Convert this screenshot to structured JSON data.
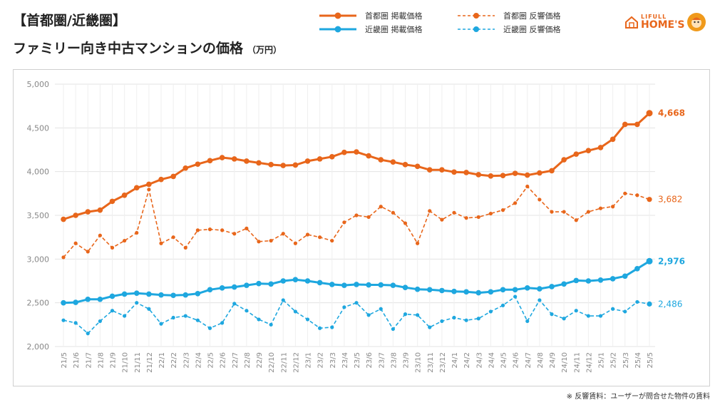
{
  "header": {
    "title_line1": "【首都圏/近畿圏】",
    "title_line2": "ファミリー向き中古マンションの価格",
    "unit": "（万円）"
  },
  "legend": [
    {
      "name": "首都圏 掲載価格",
      "color": "#e8661b",
      "style": "solid"
    },
    {
      "name": "近畿圏 掲載価格",
      "color": "#1ea7df",
      "style": "solid"
    },
    {
      "name": "首都圏 反響価格",
      "color": "#e8661b",
      "style": "dashed"
    },
    {
      "name": "近畿圏 反響価格",
      "color": "#1ea7df",
      "style": "dashed"
    }
  ],
  "logo": {
    "line1": "LIFULL",
    "line2": "HOME'S"
  },
  "footnote": "※ 反響賃料：ユーザーが問合せた物件の賃料",
  "colors": {
    "orange": "#e8661b",
    "blue": "#1ea7df",
    "grid": "#e3e3e3",
    "axis_text": "#888888"
  },
  "chart_data": {
    "type": "line",
    "x": [
      "21/5",
      "21/6",
      "21/7",
      "21/8",
      "21/9",
      "21/10",
      "21/11",
      "21/12",
      "22/1",
      "22/2",
      "22/3",
      "22/4",
      "22/5",
      "22/6",
      "22/7",
      "22/8",
      "22/9",
      "22/10",
      "22/11",
      "22/12",
      "23/1",
      "23/2",
      "23/3",
      "23/4",
      "23/5",
      "23/6",
      "23/7",
      "23/8",
      "23/9",
      "23/10",
      "23/11",
      "23/12",
      "24/1",
      "24/2",
      "24/3",
      "24/4",
      "24/5",
      "24/6",
      "24/7",
      "24/8",
      "24/9",
      "24/10",
      "24/11",
      "24/12",
      "25/1",
      "25/2",
      "25/3",
      "25/4",
      "25/5"
    ],
    "ylim": [
      2000,
      5000
    ],
    "yticks": [
      "2,000",
      "2,500",
      "3,000",
      "3,500",
      "4,000",
      "4,500",
      "5,000"
    ],
    "grid": true,
    "series": [
      {
        "name": "首都圏 掲載価格",
        "color": "#e8661b",
        "style": "solid",
        "end_label": "4,668",
        "values": [
          3455,
          3500,
          3540,
          3560,
          3660,
          3730,
          3815,
          3855,
          3910,
          3945,
          4040,
          4085,
          4125,
          4160,
          4145,
          4120,
          4100,
          4080,
          4070,
          4075,
          4120,
          4145,
          4170,
          4220,
          4225,
          4180,
          4135,
          4110,
          4080,
          4060,
          4020,
          4020,
          3995,
          3990,
          3965,
          3950,
          3955,
          3980,
          3960,
          3985,
          4010,
          4135,
          4200,
          4240,
          4275,
          4370,
          4540,
          4540,
          4668
        ]
      },
      {
        "name": "首都圏 反響価格",
        "color": "#e8661b",
        "style": "dashed",
        "end_label": "3,682",
        "values": [
          3020,
          3180,
          3085,
          3270,
          3130,
          3210,
          3300,
          3795,
          3180,
          3250,
          3130,
          3330,
          3340,
          3330,
          3290,
          3350,
          3200,
          3210,
          3290,
          3180,
          3280,
          3250,
          3210,
          3420,
          3500,
          3480,
          3600,
          3530,
          3410,
          3180,
          3550,
          3450,
          3530,
          3470,
          3480,
          3520,
          3560,
          3640,
          3830,
          3680,
          3540,
          3540,
          3445,
          3540,
          3580,
          3600,
          3750,
          3730,
          3682
        ]
      },
      {
        "name": "近畿圏 掲載価格",
        "color": "#1ea7df",
        "style": "solid",
        "end_label": "2,976",
        "values": [
          2500,
          2505,
          2540,
          2540,
          2575,
          2600,
          2610,
          2600,
          2590,
          2585,
          2590,
          2605,
          2650,
          2670,
          2680,
          2700,
          2720,
          2715,
          2750,
          2765,
          2750,
          2730,
          2710,
          2700,
          2710,
          2705,
          2705,
          2700,
          2675,
          2655,
          2650,
          2640,
          2630,
          2625,
          2615,
          2625,
          2650,
          2650,
          2670,
          2660,
          2685,
          2715,
          2755,
          2750,
          2760,
          2775,
          2805,
          2890,
          2976
        ]
      },
      {
        "name": "近畿圏 反響価格",
        "color": "#1ea7df",
        "style": "dashed",
        "end_label": "2,486",
        "values": [
          2300,
          2270,
          2150,
          2290,
          2410,
          2350,
          2500,
          2430,
          2260,
          2330,
          2350,
          2300,
          2210,
          2270,
          2490,
          2410,
          2310,
          2250,
          2530,
          2400,
          2310,
          2210,
          2220,
          2450,
          2500,
          2360,
          2430,
          2200,
          2370,
          2360,
          2220,
          2290,
          2330,
          2300,
          2320,
          2400,
          2470,
          2570,
          2290,
          2530,
          2370,
          2320,
          2410,
          2350,
          2350,
          2430,
          2400,
          2510,
          2486
        ]
      }
    ]
  }
}
